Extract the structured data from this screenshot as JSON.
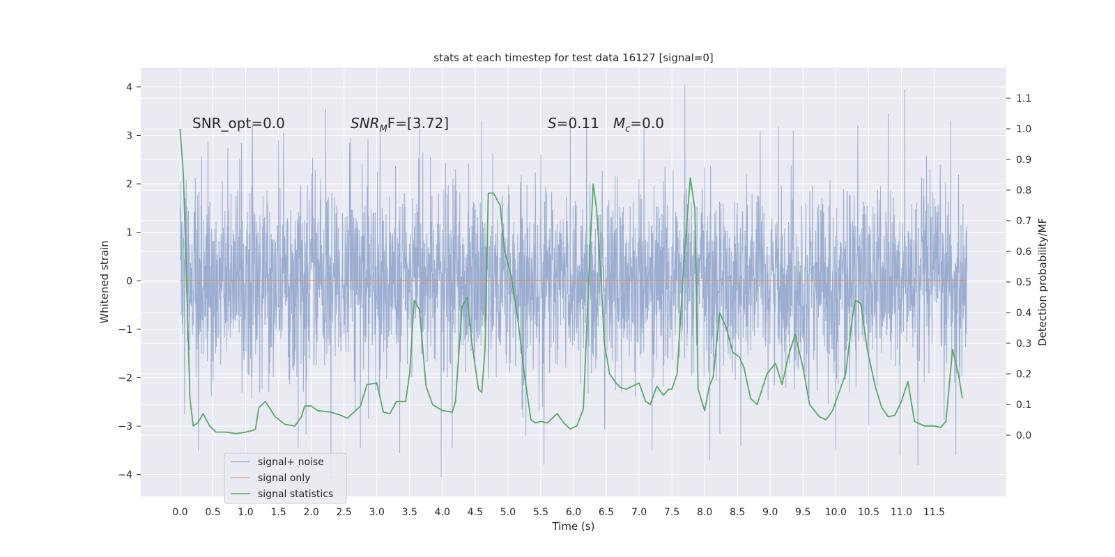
{
  "chart_data": {
    "type": "line",
    "title": "stats at each timestep for test data 16127 [signal=0]",
    "xlabel": "Time (s)",
    "ylabel": "Whitened strain",
    "ylabel_right": "Detection probability/MF",
    "xlim": [
      -0.6,
      12.6
    ],
    "ylim": [
      -4.45,
      4.4
    ],
    "ylim_right": [
      -0.2,
      1.2
    ],
    "x_ticks": [
      "0.0",
      "0.5",
      "1.0",
      "1.5",
      "2.0",
      "2.5",
      "3.0",
      "3.5",
      "4.0",
      "4.5",
      "5.0",
      "5.5",
      "6.0",
      "6.5",
      "7.0",
      "7.5",
      "8.0",
      "8.5",
      "9.0",
      "9.5",
      "10.0",
      "10.5",
      "11.0",
      "11.5"
    ],
    "y_ticks": [
      "4",
      "3",
      "2",
      "1",
      "0",
      "−1",
      "−2",
      "−3",
      "−4"
    ],
    "y_ticks_right": [
      "1.1",
      "1.0",
      "0.9",
      "0.8",
      "0.7",
      "0.6",
      "0.5",
      "0.4",
      "0.3",
      "0.2",
      "0.1",
      "0.0"
    ],
    "grid": true,
    "legend_placement": "lower-left",
    "annotations": {
      "snr_opt": "SNR_opt=0.0",
      "snr_mf_main": "SNR",
      "snr_mf_sub": "M",
      "snr_mf_rest": "F=[3.72]",
      "s_var": "S",
      "s_rest": "=0.11",
      "mc_main": "M",
      "mc_sub": "c",
      "mc_rest": "=0.0"
    },
    "series": [
      {
        "name": "signal+ noise",
        "color": "#4c72b0",
        "kind": "noise",
        "x_range": [
          0.0,
          12.0
        ],
        "amplitude_envelope": [
          1.0,
          1.0
        ],
        "peak_values": [
          {
            "x": 0.0,
            "y": 2.05
          },
          {
            "x": 0.07,
            "y": -2.75
          },
          {
            "x": 0.28,
            "y": -3.5
          },
          {
            "x": 1.1,
            "y": 2.35
          },
          {
            "x": 1.5,
            "y": 2.9
          },
          {
            "x": 1.8,
            "y": -3.45
          },
          {
            "x": 2.22,
            "y": 3.55
          },
          {
            "x": 2.3,
            "y": -4.05
          },
          {
            "x": 2.6,
            "y": 2.95
          },
          {
            "x": 2.75,
            "y": -3.45
          },
          {
            "x": 3.05,
            "y": 3.1
          },
          {
            "x": 3.35,
            "y": -3.55
          },
          {
            "x": 3.65,
            "y": 3.3
          },
          {
            "x": 3.98,
            "y": -4.05
          },
          {
            "x": 4.15,
            "y": -3.45
          },
          {
            "x": 4.6,
            "y": 3.3
          },
          {
            "x": 5.5,
            "y": 2.6
          },
          {
            "x": 5.55,
            "y": -3.8
          },
          {
            "x": 5.95,
            "y": 3.25
          },
          {
            "x": 6.2,
            "y": 3.3
          },
          {
            "x": 6.48,
            "y": -3.0
          },
          {
            "x": 7.2,
            "y": -3.5
          },
          {
            "x": 7.7,
            "y": 4.05
          },
          {
            "x": 8.08,
            "y": -3.7
          },
          {
            "x": 8.55,
            "y": -3.4
          },
          {
            "x": 9.35,
            "y": 3.1
          },
          {
            "x": 10.0,
            "y": -3.5
          },
          {
            "x": 10.8,
            "y": 3.45
          },
          {
            "x": 10.98,
            "y": -3.6
          },
          {
            "x": 11.05,
            "y": 3.95
          },
          {
            "x": 11.25,
            "y": -3.8
          },
          {
            "x": 11.75,
            "y": 3.3
          },
          {
            "x": 11.83,
            "y": -3.6
          }
        ]
      },
      {
        "name": "signal only",
        "color": "#dd8452",
        "kind": "line",
        "x": [
          0.0,
          12.0
        ],
        "y": [
          0.0,
          0.0
        ]
      },
      {
        "name": "signal statistics",
        "color": "#55a868",
        "kind": "line",
        "axis": "right",
        "x": [
          0.0,
          0.05,
          0.1,
          0.15,
          0.2,
          0.27,
          0.35,
          0.45,
          0.55,
          0.7,
          0.85,
          1.0,
          1.1,
          1.15,
          1.2,
          1.3,
          1.45,
          1.6,
          1.75,
          1.85,
          1.9,
          2.0,
          2.1,
          2.3,
          2.45,
          2.55,
          2.65,
          2.75,
          2.85,
          3.0,
          3.1,
          3.2,
          3.3,
          3.38,
          3.44,
          3.5,
          3.57,
          3.65,
          3.75,
          3.85,
          4.0,
          4.15,
          4.2,
          4.3,
          4.38,
          4.45,
          4.55,
          4.6,
          4.65,
          4.7,
          4.78,
          4.88,
          4.95,
          5.05,
          5.15,
          5.25,
          5.35,
          5.42,
          5.5,
          5.6,
          5.75,
          5.85,
          5.95,
          6.05,
          6.15,
          6.25,
          6.3,
          6.35,
          6.41,
          6.47,
          6.55,
          6.65,
          6.72,
          6.8,
          6.9,
          7.0,
          7.1,
          7.17,
          7.27,
          7.37,
          7.45,
          7.5,
          7.58,
          7.68,
          7.78,
          7.85,
          7.9,
          8.0,
          8.07,
          8.13,
          8.23,
          8.33,
          8.43,
          8.53,
          8.6,
          8.7,
          8.8,
          8.95,
          9.08,
          9.18,
          9.28,
          9.38,
          9.5,
          9.6,
          9.75,
          9.85,
          9.95,
          10.05,
          10.15,
          10.25,
          10.3,
          10.38,
          10.48,
          10.6,
          10.7,
          10.8,
          10.9,
          11.0,
          11.1,
          11.2,
          11.35,
          11.5,
          11.6,
          11.68,
          11.78,
          11.87,
          11.93
        ],
        "y": [
          1.0,
          0.85,
          0.5,
          0.12,
          0.03,
          0.04,
          0.07,
          0.03,
          0.01,
          0.01,
          0.005,
          0.01,
          0.015,
          0.02,
          0.09,
          0.11,
          0.06,
          0.035,
          0.03,
          0.06,
          0.095,
          0.095,
          0.08,
          0.075,
          0.065,
          0.055,
          0.075,
          0.095,
          0.165,
          0.17,
          0.075,
          0.07,
          0.11,
          0.11,
          0.11,
          0.2,
          0.44,
          0.41,
          0.16,
          0.1,
          0.08,
          0.075,
          0.11,
          0.42,
          0.45,
          0.3,
          0.15,
          0.14,
          0.28,
          0.79,
          0.79,
          0.75,
          0.6,
          0.52,
          0.38,
          0.2,
          0.05,
          0.04,
          0.045,
          0.04,
          0.07,
          0.04,
          0.02,
          0.03,
          0.085,
          0.6,
          0.82,
          0.74,
          0.55,
          0.3,
          0.2,
          0.17,
          0.155,
          0.15,
          0.16,
          0.17,
          0.11,
          0.1,
          0.16,
          0.13,
          0.15,
          0.15,
          0.2,
          0.55,
          0.84,
          0.74,
          0.15,
          0.08,
          0.16,
          0.19,
          0.4,
          0.35,
          0.27,
          0.255,
          0.22,
          0.12,
          0.1,
          0.2,
          0.235,
          0.165,
          0.26,
          0.33,
          0.22,
          0.1,
          0.06,
          0.05,
          0.08,
          0.14,
          0.2,
          0.38,
          0.44,
          0.43,
          0.28,
          0.16,
          0.09,
          0.06,
          0.065,
          0.11,
          0.175,
          0.045,
          0.03,
          0.03,
          0.025,
          0.045,
          0.28,
          0.2,
          0.12
        ]
      }
    ]
  }
}
